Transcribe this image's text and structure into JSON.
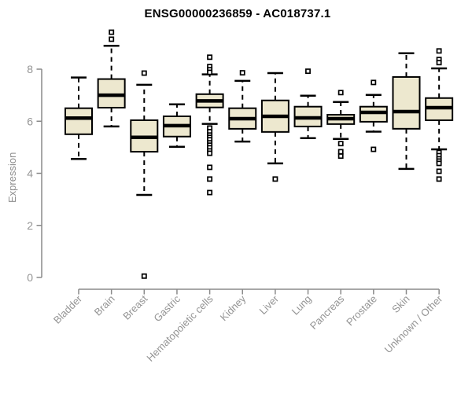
{
  "colors": {
    "box_fill": "#EDE8CF",
    "box_stroke": "#000000",
    "median": "#000000",
    "whisker": "#000000",
    "outlier_fill": "#ffffff",
    "axis_line": "#8a8a8a",
    "tick_label": "#949494",
    "title": "#000000",
    "background": "#ffffff"
  },
  "chart_data": {
    "type": "boxplot",
    "title": "ENSG00000236859 - AC018737.1",
    "xlabel": "",
    "ylabel": "Expression",
    "ylim": [
      0,
      9.6
    ],
    "yticks": [
      0,
      2,
      4,
      6,
      8
    ],
    "grid": false,
    "legend": "none",
    "categories": [
      "Bladder",
      "Brain",
      "Breast",
      "Gastric",
      "Hematopoietic cells",
      "Kidney",
      "Liver",
      "Lung",
      "Pancreas",
      "Prostate",
      "Skin",
      "Unknown / Other"
    ],
    "series": [
      {
        "category": "Bladder",
        "whisker_low": 4.55,
        "q1": 5.5,
        "median": 6.12,
        "q3": 6.5,
        "whisker_high": 7.68,
        "outliers": []
      },
      {
        "category": "Brain",
        "whisker_low": 5.8,
        "q1": 6.52,
        "median": 7.0,
        "q3": 7.62,
        "whisker_high": 8.9,
        "outliers": [
          9.15,
          9.42
        ]
      },
      {
        "category": "Breast",
        "whisker_low": 3.17,
        "q1": 4.83,
        "median": 5.38,
        "q3": 6.04,
        "whisker_high": 7.4,
        "outliers": [
          7.85,
          0.05
        ]
      },
      {
        "category": "Gastric",
        "whisker_low": 5.02,
        "q1": 5.41,
        "median": 5.83,
        "q3": 6.19,
        "whisker_high": 6.65,
        "outliers": []
      },
      {
        "category": "Hematopoietic cells",
        "whisker_low": 5.9,
        "q1": 6.53,
        "median": 6.78,
        "q3": 7.04,
        "whisker_high": 7.8,
        "outliers": [
          8.46,
          8.1,
          7.98,
          7.88,
          5.74,
          5.6,
          5.47,
          5.38,
          5.29,
          5.17,
          5.08,
          4.98,
          4.86,
          4.77,
          4.23,
          3.78,
          3.26
        ]
      },
      {
        "category": "Kidney",
        "whisker_low": 5.22,
        "q1": 5.71,
        "median": 6.1,
        "q3": 6.5,
        "whisker_high": 7.55,
        "outliers": [
          7.86
        ]
      },
      {
        "category": "Liver",
        "whisker_low": 4.38,
        "q1": 5.59,
        "median": 6.19,
        "q3": 6.8,
        "whisker_high": 7.85,
        "outliers": [
          3.78
        ]
      },
      {
        "category": "Lung",
        "whisker_low": 5.35,
        "q1": 5.8,
        "median": 6.13,
        "q3": 6.56,
        "whisker_high": 6.98,
        "outliers": [
          7.92
        ]
      },
      {
        "category": "Pancreas",
        "whisker_low": 5.32,
        "q1": 5.89,
        "median": 6.1,
        "q3": 6.25,
        "whisker_high": 6.74,
        "outliers": [
          7.1,
          5.14,
          4.83,
          4.66
        ]
      },
      {
        "category": "Prostate",
        "whisker_low": 5.6,
        "q1": 5.98,
        "median": 6.34,
        "q3": 6.56,
        "whisker_high": 7.01,
        "outliers": [
          7.49,
          4.92
        ]
      },
      {
        "category": "Skin",
        "whisker_low": 4.17,
        "q1": 5.71,
        "median": 6.37,
        "q3": 7.7,
        "whisker_high": 8.61,
        "outliers": []
      },
      {
        "category": "Unknown / Other",
        "whisker_low": 4.92,
        "q1": 6.04,
        "median": 6.52,
        "q3": 6.89,
        "whisker_high": 8.03,
        "outliers": [
          8.7,
          8.37,
          8.25,
          4.8,
          4.68,
          4.56,
          4.47,
          4.38,
          4.08,
          3.78
        ]
      }
    ]
  }
}
